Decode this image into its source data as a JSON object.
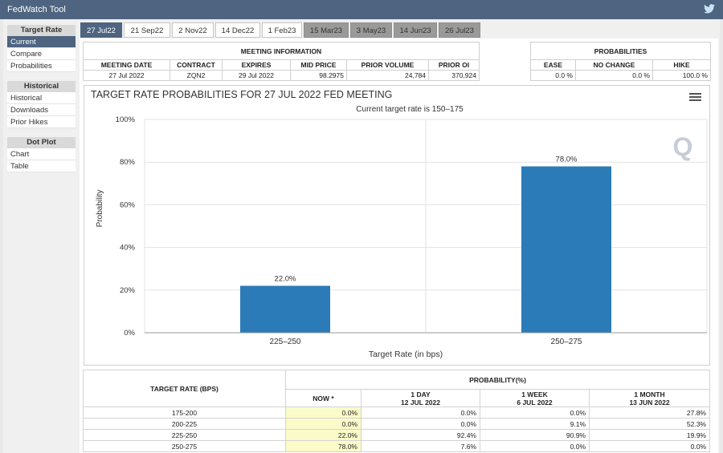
{
  "app": {
    "title": "FedWatch Tool",
    "twitter_icon": "twitter-bird-icon"
  },
  "sidebar": {
    "groups": [
      {
        "header": "Target Rate",
        "items": [
          "Current",
          "Compare",
          "Probabilities"
        ]
      },
      {
        "header": "Historical",
        "items": [
          "Historical",
          "Downloads",
          "Prior Hikes"
        ]
      },
      {
        "header": "Dot Plot",
        "items": [
          "Chart",
          "Table"
        ]
      }
    ],
    "active_item": "Current"
  },
  "tabs": [
    "27 Jul22",
    "21 Sep22",
    "2 Nov22",
    "14 Dec22",
    "1 Feb23",
    "15 Mar23",
    "3 May23",
    "14 Jun23",
    "26 Jul23"
  ],
  "meeting_info": {
    "header": "MEETING INFORMATION",
    "columns": [
      "MEETING DATE",
      "CONTRACT",
      "EXPIRES",
      "MID PRICE",
      "PRIOR VOLUME",
      "PRIOR OI"
    ],
    "values": [
      "27 Jul 2022",
      "ZQN2",
      "29 Jul 2022",
      "98.2975",
      "24,784",
      "370,924"
    ]
  },
  "probabilities": {
    "header": "PROBABILITIES",
    "columns": [
      "EASE",
      "NO CHANGE",
      "HIKE"
    ],
    "values": [
      "0.0 %",
      "0.0 %",
      "100.0 %"
    ]
  },
  "chart": {
    "menu_icon": "hamburger-menu-icon",
    "watermark": "Q"
  },
  "chart_data": {
    "type": "bar",
    "title": "TARGET RATE PROBABILITIES FOR 27 JUL 2022 FED MEETING",
    "subtitle": "Current target rate is 150–175",
    "categories": [
      "225–250",
      "250–275"
    ],
    "values": [
      22.0,
      78.0
    ],
    "value_labels": [
      "22.0%",
      "78.0%"
    ],
    "xlabel": "Target Rate (in bps)",
    "ylabel": "Probability",
    "ylim": [
      0,
      100
    ],
    "yticks": [
      "0%",
      "20%",
      "40%",
      "60%",
      "80%",
      "100%"
    ],
    "bar_color": "#2b7bb9",
    "grid": true
  },
  "prob_table": {
    "header_rate": "TARGET RATE (BPS)",
    "header_prob": "PROBABILITY(%)",
    "subheaders": [
      {
        "l1": "NOW *",
        "l2": ""
      },
      {
        "l1": "1 DAY",
        "l2": "12 JUL 2022"
      },
      {
        "l1": "1 WEEK",
        "l2": "6 JUL 2022"
      },
      {
        "l1": "1 MONTH",
        "l2": "13 JUN 2022"
      }
    ],
    "rows": [
      [
        "175-200",
        "0.0%",
        "0.0%",
        "0.0%",
        "27.8%"
      ],
      [
        "200-225",
        "0.0%",
        "0.0%",
        "9.1%",
        "52.3%"
      ],
      [
        "225-250",
        "22.0%",
        "92.4%",
        "90.9%",
        "19.9%"
      ],
      [
        "250-275",
        "78.0%",
        "7.6%",
        "0.0%",
        "0.0%"
      ]
    ]
  }
}
